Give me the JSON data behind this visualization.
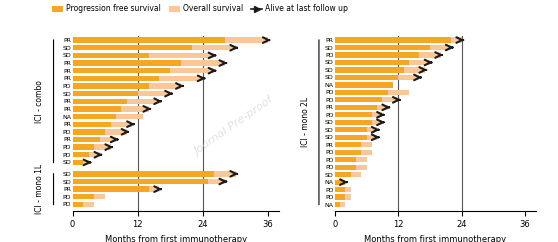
{
  "left_chart": {
    "xlabel": "Months from first immunotherapy",
    "xticks": [
      0,
      12,
      24,
      36
    ],
    "xlim": [
      0,
      38
    ],
    "combo_labels": [
      "PR",
      "SD",
      "SD",
      "PR",
      "PR",
      "PR",
      "PD",
      "SD",
      "PR",
      "PR",
      "NA",
      "PR",
      "PD",
      "PR",
      "PD",
      "PD",
      "SD"
    ],
    "combo_pfs": [
      28,
      22,
      14,
      20,
      18,
      16,
      14,
      12,
      10,
      9,
      8,
      7,
      6,
      5,
      4,
      3,
      2
    ],
    "combo_os": [
      36,
      30,
      26,
      28,
      26,
      24,
      20,
      18,
      16,
      14,
      13,
      11,
      10,
      8,
      7,
      5,
      3
    ],
    "combo_alive": [
      1,
      1,
      1,
      1,
      1,
      1,
      1,
      1,
      1,
      1,
      0,
      1,
      1,
      1,
      1,
      1,
      1
    ],
    "mono1L_labels": [
      "SD",
      "SD",
      "PR",
      "PD",
      "PD"
    ],
    "mono1L_pfs": [
      26,
      25,
      14,
      4,
      2
    ],
    "mono1L_os": [
      30,
      28,
      16,
      6,
      4
    ],
    "mono1L_alive": [
      1,
      1,
      1,
      0,
      0
    ],
    "group_label_combo": "ICI - combo",
    "group_label_mono1L": "ICI - mono 1L",
    "vlines": [
      12,
      24
    ]
  },
  "right_chart": {
    "xlabel": "Months from first immunotherapy",
    "xticks": [
      0,
      12,
      24,
      36
    ],
    "xlim": [
      0,
      38
    ],
    "mono2L_labels": [
      "PR",
      "SD",
      "PD",
      "SD",
      "SD",
      "SD",
      "NA",
      "PD",
      "PD",
      "PR",
      "PD",
      "SD",
      "SD",
      "SD",
      "PR",
      "PD",
      "PD",
      "PD",
      "SD",
      "NA",
      "PD",
      "PD",
      "NA"
    ],
    "mono2L_pfs": [
      22,
      18,
      16,
      14,
      13,
      12,
      11,
      10,
      9,
      8,
      7,
      7,
      6,
      6,
      5,
      5,
      4,
      4,
      3,
      2,
      2,
      2,
      1
    ],
    "mono2L_os": [
      24,
      22,
      20,
      18,
      17,
      16,
      11,
      14,
      12,
      10,
      9,
      9,
      8,
      8,
      7,
      7,
      6,
      6,
      5,
      2,
      3,
      3,
      2
    ],
    "mono2L_alive": [
      1,
      1,
      1,
      1,
      1,
      1,
      0,
      0,
      1,
      1,
      1,
      1,
      1,
      1,
      0,
      0,
      0,
      0,
      0,
      1,
      0,
      0,
      0
    ],
    "group_label": "ICI - mono 2L",
    "vlines": [
      12,
      24
    ]
  },
  "legend": {
    "pfs_color": "#F5A623",
    "os_color": "#FAC898",
    "pfs_label": "Progression free survival",
    "os_label": "Overall survival",
    "alive_label": "Alive at last follow up"
  },
  "watermark": "Journal Pre-proof",
  "background": "#ffffff",
  "bar_height": 0.7
}
